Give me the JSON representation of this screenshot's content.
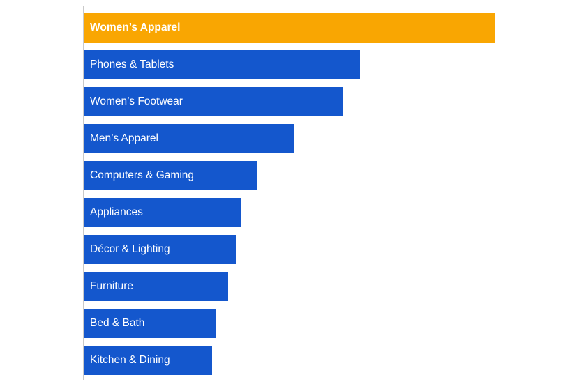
{
  "chart_data": {
    "type": "bar",
    "orientation": "horizontal",
    "title": "",
    "categories": [
      "Women’s Apparel",
      "Phones & Tablets",
      "Women’s Footwear",
      "Men’s Apparel",
      "Computers & Gaming",
      "Appliances",
      "Décor & Lighting",
      "Furniture",
      "Bed & Bath",
      "Kitchen & Dining"
    ],
    "values": [
      100,
      67,
      63,
      51,
      42,
      38,
      37,
      35,
      32,
      31
    ],
    "value_scale": "relative, longest bar = 100 (no value axis labels shown)",
    "highlight_index": 0,
    "colors": {
      "highlight": "#F9A602",
      "default": "#1457CD",
      "label": "#FFFFFF",
      "axis_line": "#C9C9C9",
      "background": "#FFFFFF"
    },
    "legend": "none",
    "grid": false,
    "value_axis_labels_visible": false,
    "category_labels_position": "inside-bar-left"
  }
}
